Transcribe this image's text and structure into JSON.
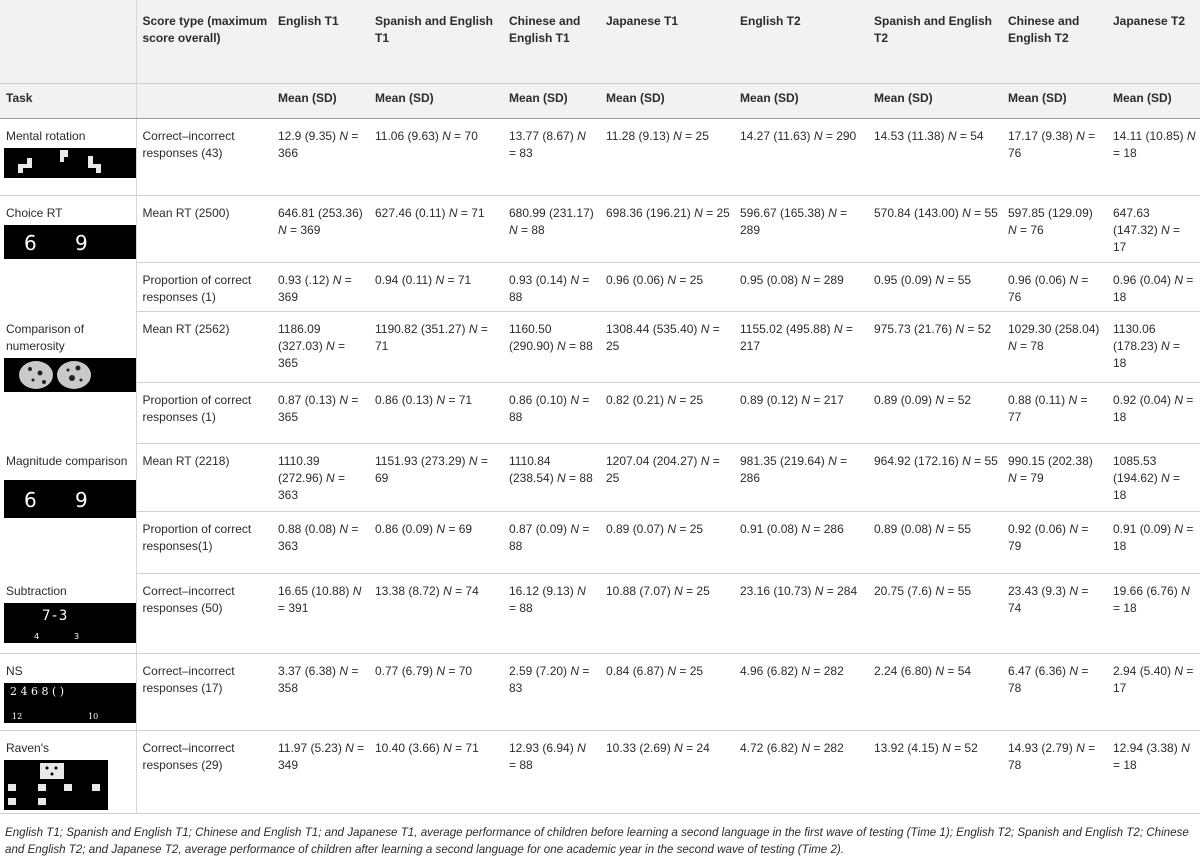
{
  "header": {
    "score_type": "Score type (maximum score overall)",
    "groups": [
      "English T1",
      "Spanish and English T1",
      "Chinese and English T1",
      "Japanese T1",
      "English T2",
      "Spanish and English T2",
      "Chinese and English T2",
      "Japanese T2"
    ],
    "task": "Task",
    "mean_sd": "Mean (SD)"
  },
  "n_symbol": "N",
  "rows": [
    {
      "task": "Mental rotation",
      "stimulus_icon": "rotated-l-shapes-icon",
      "score": "Correct–incorrect responses (43)",
      "cells": [
        [
          "12.9 (9.35)",
          "366"
        ],
        [
          "11.06 (9.63)",
          "70"
        ],
        [
          "13.77 (8.67)",
          "83"
        ],
        [
          "11.28 (9.13)",
          "25"
        ],
        [
          "14.27 (11.63)",
          "290"
        ],
        [
          "14.53 (11.38)",
          "54"
        ],
        [
          "17.17 (9.38)",
          "76"
        ],
        [
          "14.11 (10.85)",
          "18"
        ]
      ]
    },
    {
      "task": "Choice RT",
      "stimulus_icon": "digits-6-9-icon",
      "score": "Mean RT (2500)",
      "cells": [
        [
          "646.81 (253.36)",
          "369"
        ],
        [
          "627.46 (0.11)",
          "71"
        ],
        [
          "680.99 (231.17)",
          "88"
        ],
        [
          "698.36 (196.21)",
          "25"
        ],
        [
          "596.67 (165.38)",
          "289"
        ],
        [
          "570.84 (143.00)",
          "55"
        ],
        [
          "597.85 (129.09)",
          "76"
        ],
        [
          "647.63 (147.32)",
          "17"
        ]
      ]
    },
    {
      "task": "",
      "score": "Proportion of correct responses (1)",
      "cells": [
        [
          "0.93 (.12)",
          "369"
        ],
        [
          "0.94 (0.11)",
          "71"
        ],
        [
          "0.93 (0.14)",
          "88"
        ],
        [
          "0.96 (0.06)",
          "25"
        ],
        [
          "0.95 (0.08)",
          "289"
        ],
        [
          "0.95 (0.09)",
          "55"
        ],
        [
          "0.96 (0.06)",
          "76"
        ],
        [
          "0.96 (0.04)",
          "18"
        ]
      ]
    },
    {
      "task": "Comparison of numerosity",
      "stimulus_icon": "dot-clouds-icon",
      "score": "Mean RT (2562)",
      "cells": [
        [
          "1186.09 (327.03)",
          "365"
        ],
        [
          "1190.82 (351.27)",
          "71"
        ],
        [
          "1160.50 (290.90)",
          "88"
        ],
        [
          "1308.44 (535.40)",
          "25"
        ],
        [
          "1155.02 (495.88)",
          "217"
        ],
        [
          "975.73 (21.76)",
          "52"
        ],
        [
          "1029.30 (258.04)",
          "78"
        ],
        [
          "1130.06 (178.23)",
          "18"
        ]
      ]
    },
    {
      "task": "",
      "score": "Proportion of correct responses (1)",
      "cells": [
        [
          "0.87 (0.13)",
          "365"
        ],
        [
          "0.86 (0.13)",
          "71"
        ],
        [
          "0.86 (0.10)",
          "88"
        ],
        [
          "0.82 (0.21)",
          "25"
        ],
        [
          "0.89 (0.12)",
          "217"
        ],
        [
          "0.89 (0.09)",
          "52"
        ],
        [
          "0.88 (0.11)",
          "77"
        ],
        [
          "0.92 (0.04)",
          "18"
        ]
      ]
    },
    {
      "task": "Magnitude comparison",
      "stimulus_icon": "digits-6-9-icon",
      "score": "Mean RT (2218)",
      "cells": [
        [
          "1110.39 (272.96)",
          "363"
        ],
        [
          "1151.93 (273.29)",
          "69"
        ],
        [
          "1110.84 (238.54)",
          "88"
        ],
        [
          "1207.04 (204.27)",
          "25"
        ],
        [
          "981.35 (219.64)",
          "286"
        ],
        [
          "964.92 (172.16)",
          "55"
        ],
        [
          "990.15 (202.38)",
          "79"
        ],
        [
          "1085.53 (194.62)",
          "18"
        ]
      ]
    },
    {
      "task": "",
      "score": "Proportion of correct responses(1)",
      "cells": [
        [
          "0.88 (0.08)",
          "363"
        ],
        [
          "0.86 (0.09)",
          "69"
        ],
        [
          "0.87 (0.09)",
          "88"
        ],
        [
          "0.89 (0.07)",
          "25"
        ],
        [
          "0.91 (0.08)",
          "286"
        ],
        [
          "0.89 (0.08)",
          "55"
        ],
        [
          "0.92 (0.06)",
          "79"
        ],
        [
          "0.91 (0.09)",
          "18"
        ]
      ]
    },
    {
      "task": "Subtraction",
      "stimulus_icon": "subtraction-problem-icon",
      "score": "Correct–incorrect responses (50)",
      "cells": [
        [
          "16.65 (10.88)",
          "391"
        ],
        [
          "13.38 (8.72)",
          "74"
        ],
        [
          "16.12 (9.13)",
          "88"
        ],
        [
          "10.88 (7.07)",
          "25"
        ],
        [
          "23.16 (10.73)",
          "284"
        ],
        [
          "20.75 (7.6)",
          "55"
        ],
        [
          "23.43 (9.3)",
          "74"
        ],
        [
          "19.66 (6.76)",
          "18"
        ]
      ]
    },
    {
      "task": "NS",
      "stimulus_icon": "number-sequence-icon",
      "score": "Correct–incorrect responses (17)",
      "cells": [
        [
          "3.37 (6.38)",
          "358"
        ],
        [
          "0.77 (6.79)",
          "70"
        ],
        [
          "2.59 (7.20)",
          "83"
        ],
        [
          "0.84 (6.87)",
          "25"
        ],
        [
          "4.96 (6.82)",
          "282"
        ],
        [
          "2.24 (6.80)",
          "54"
        ],
        [
          "6.47 (6.36)",
          "78"
        ],
        [
          "2.94 (5.40)",
          "17"
        ]
      ]
    },
    {
      "task": "Raven's",
      "stimulus_icon": "matrix-puzzle-icon",
      "score": "Correct–incorrect responses (29)",
      "cells": [
        [
          "11.97 (5.23)",
          "349"
        ],
        [
          "10.40 (3.66)",
          "71"
        ],
        [
          "12.93 (6.94)",
          "88"
        ],
        [
          "10.33 (2.69)",
          "24"
        ],
        [
          "4.72 (6.82)",
          "282"
        ],
        [
          "13.92 (4.15)",
          "52"
        ],
        [
          "14.93 (2.79)",
          "78"
        ],
        [
          "12.94 (3.38)",
          "18"
        ]
      ]
    }
  ],
  "stimuli": {
    "digits": [
      "6",
      "9"
    ],
    "subtraction": {
      "problem": "7-3",
      "options": [
        "4",
        "3"
      ]
    },
    "number_sequence": {
      "sequence": "2 4 6 8 ( )",
      "options": [
        "12",
        "10"
      ]
    }
  },
  "footnote": "English T1; Spanish and English T1; Chinese and English T1; and Japanese T1, average performance of children before learning a second language in the first wave of testing (Time 1); English T2; Spanish and English T2; Chinese and English T2; and Japanese T2, average performance of children after learning a second language for one academic year in the second wave of testing (Time 2)."
}
